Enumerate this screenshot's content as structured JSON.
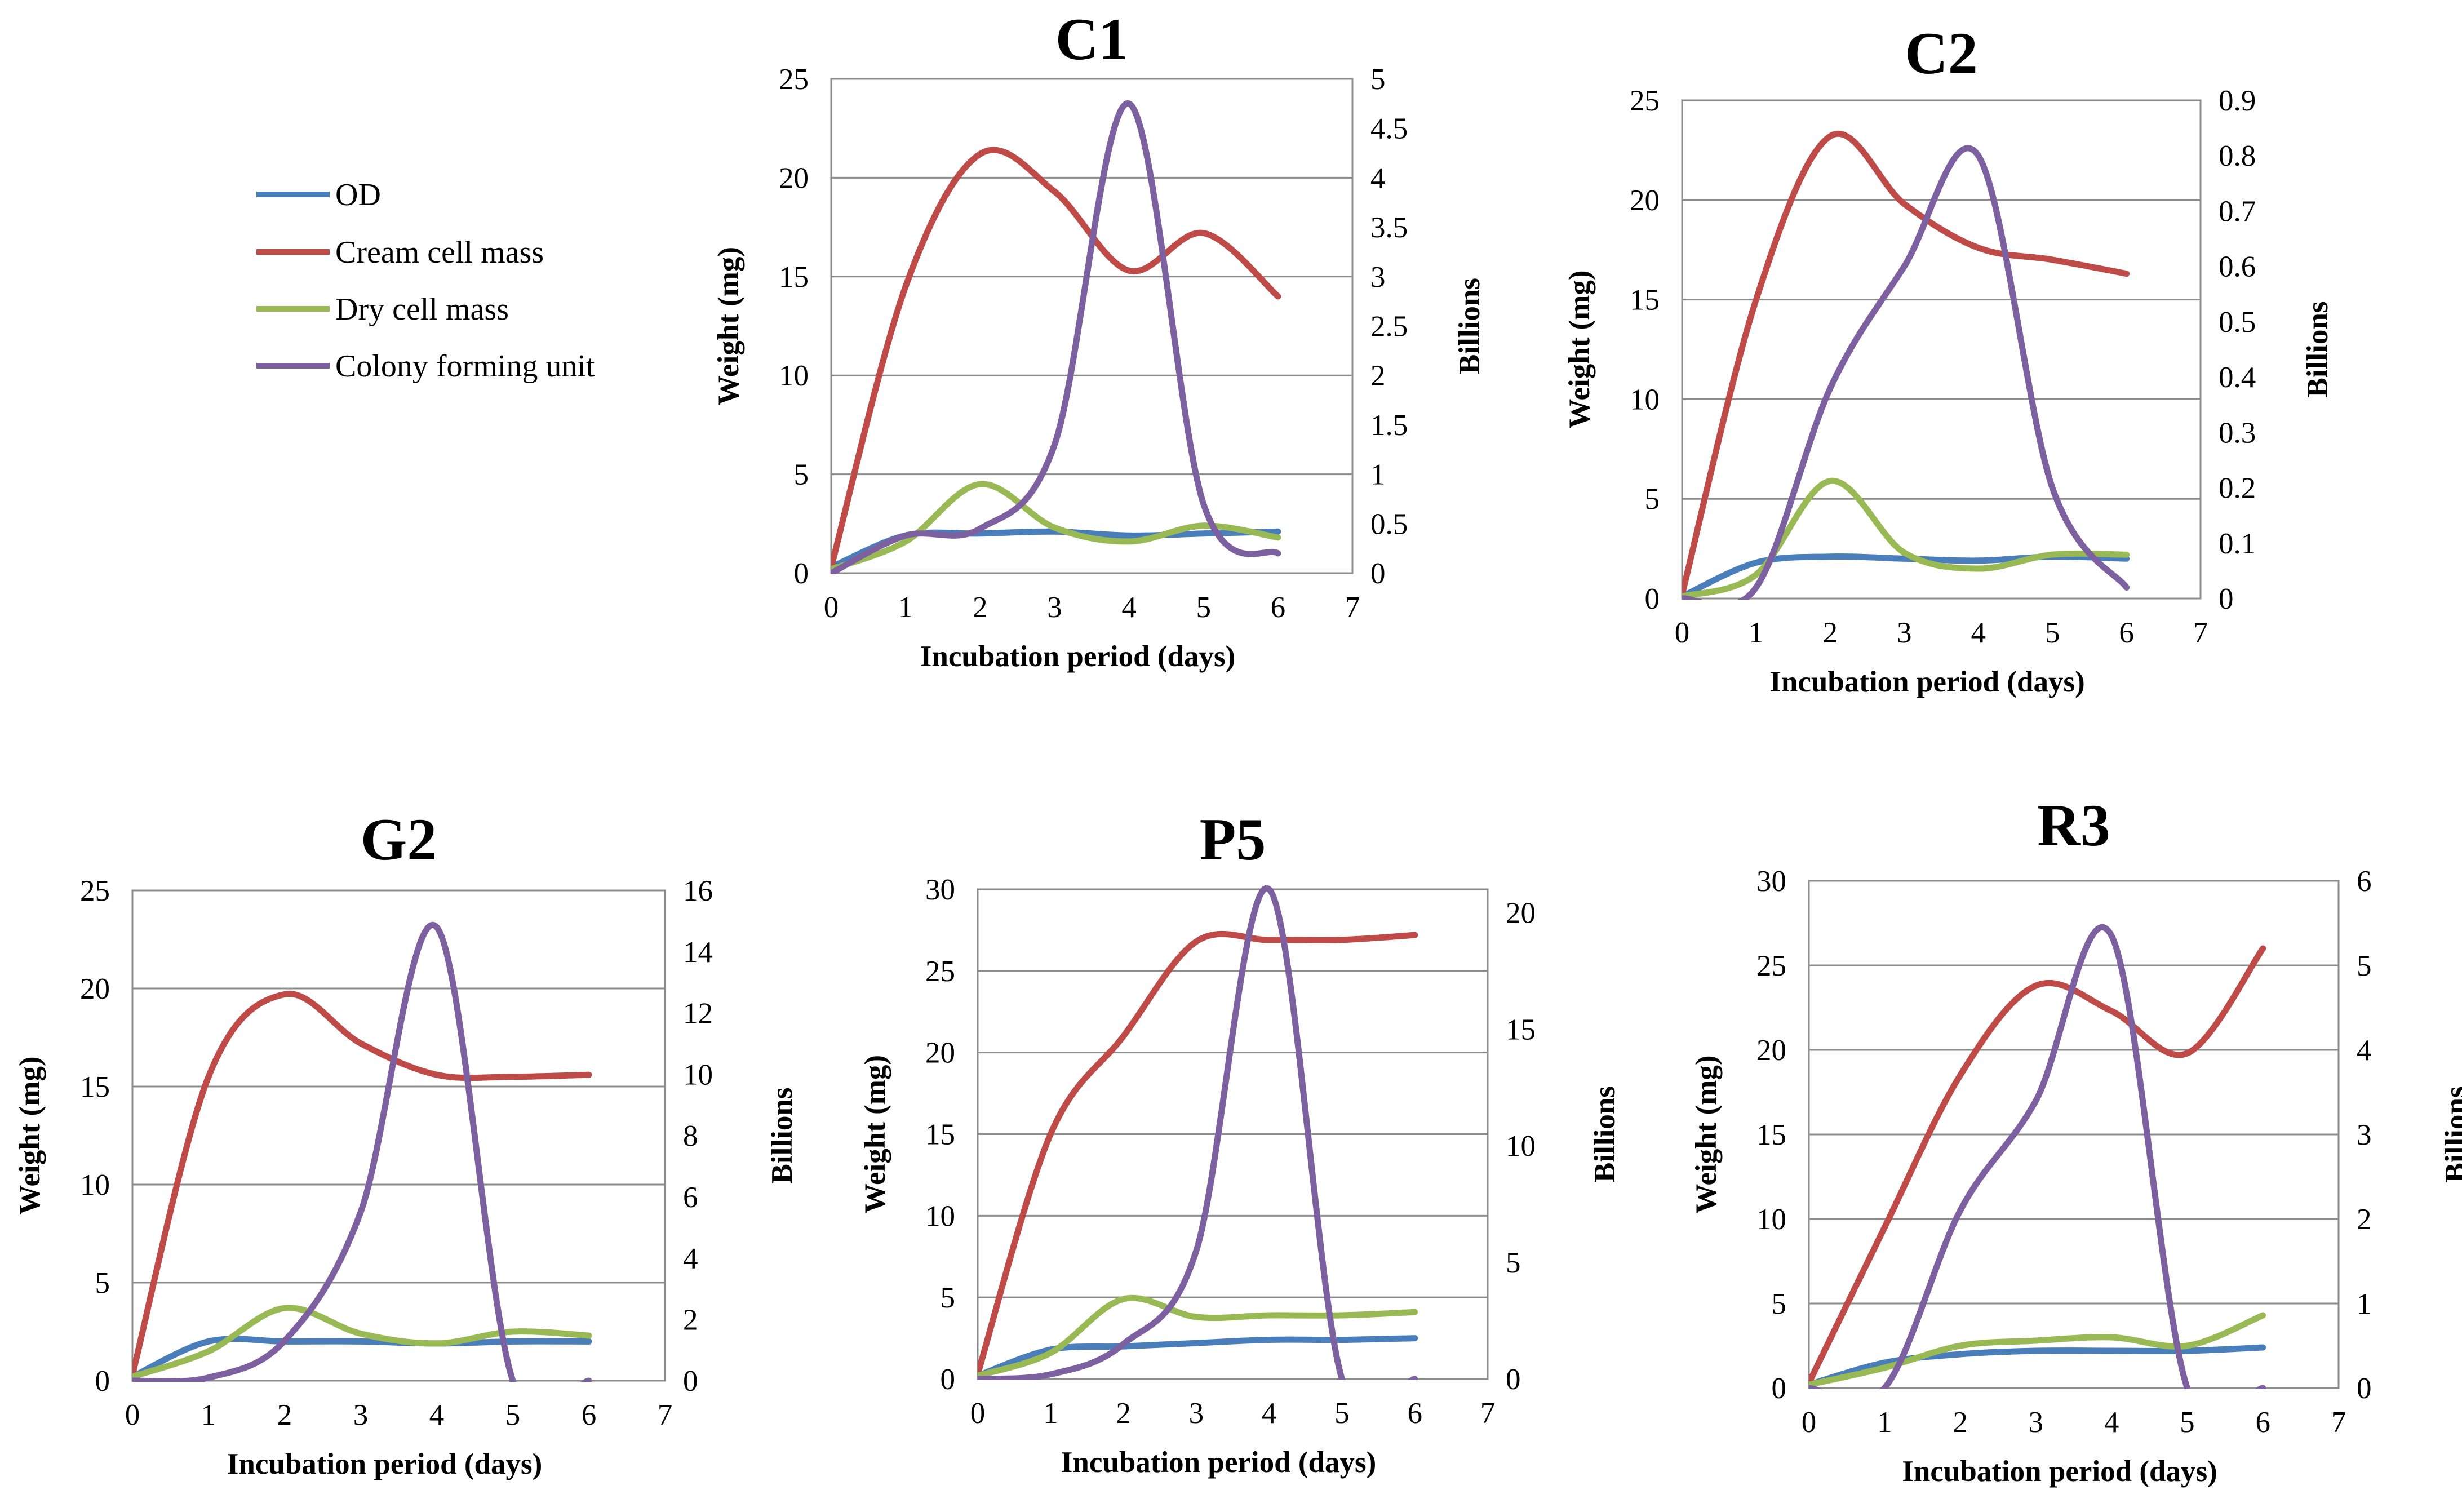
{
  "legend": {
    "items": [
      {
        "key": "od",
        "label": "OD",
        "color": "#4a7ebb"
      },
      {
        "key": "cream",
        "label": "Cream cell mass",
        "color": "#be4b48"
      },
      {
        "key": "dry",
        "label": "Dry cell mass",
        "color": "#98b954"
      },
      {
        "key": "cfu",
        "label": "Colony forming unit",
        "color": "#7d60a0"
      }
    ]
  },
  "chart_data": [
    {
      "id": "C1",
      "type": "line",
      "title": "C1",
      "xlabel": "Incubation period (days)",
      "ylabel": "Weight (mg)",
      "y2label": "Billions",
      "x": [
        0,
        1,
        2,
        3,
        4,
        5,
        6
      ],
      "xlim": [
        0,
        7
      ],
      "xticks": [
        "0",
        "1",
        "2",
        "3",
        "4",
        "5",
        "6",
        "7"
      ],
      "ylim": [
        0,
        25
      ],
      "yticks": [
        "0",
        "5",
        "10",
        "15",
        "20",
        "25"
      ],
      "y2lim": [
        0,
        5
      ],
      "y2ticks": [
        "0",
        "0.5",
        "1",
        "1.5",
        "2",
        "2.5",
        "3",
        "3.5",
        "4",
        "4.5",
        "5"
      ],
      "grid": true,
      "series": [
        {
          "name": "OD",
          "axis": "left",
          "values": [
            0.3,
            1.9,
            2.0,
            2.1,
            1.9,
            2.0,
            2.1
          ]
        },
        {
          "name": "Cream cell mass",
          "axis": "left",
          "values": [
            0.3,
            14.5,
            21.2,
            19.3,
            15.3,
            17.2,
            14.0
          ]
        },
        {
          "name": "Dry cell mass",
          "axis": "left",
          "values": [
            0.2,
            1.6,
            4.5,
            2.3,
            1.6,
            2.4,
            1.8
          ]
        },
        {
          "name": "Colony forming unit",
          "axis": "right",
          "values": [
            0.0,
            0.38,
            0.45,
            1.3,
            4.75,
            0.7,
            0.2
          ]
        }
      ]
    },
    {
      "id": "C2",
      "type": "line",
      "title": "C2",
      "xlabel": "Incubation period (days)",
      "ylabel": "Weight (mg)",
      "y2label": "Billions",
      "x": [
        0,
        1,
        2,
        3,
        4,
        5,
        6
      ],
      "xlim": [
        0,
        7
      ],
      "xticks": [
        "0",
        "1",
        "2",
        "3",
        "4",
        "5",
        "6",
        "7"
      ],
      "ylim": [
        0,
        25
      ],
      "yticks": [
        "0",
        "5",
        "10",
        "15",
        "20",
        "25"
      ],
      "y2lim": [
        0,
        0.9
      ],
      "y2ticks": [
        "0",
        "0.1",
        "0.2",
        "0.3",
        "0.4",
        "0.5",
        "0.6",
        "0.7",
        "0.8",
        "0.9"
      ],
      "grid": true,
      "series": [
        {
          "name": "OD",
          "axis": "left",
          "values": [
            0.1,
            1.8,
            2.1,
            2.0,
            1.9,
            2.1,
            2.0
          ]
        },
        {
          "name": "Cream cell mass",
          "axis": "left",
          "values": [
            0.2,
            15.0,
            23.2,
            19.8,
            17.6,
            17.0,
            16.3
          ]
        },
        {
          "name": "Dry cell mass",
          "axis": "left",
          "values": [
            0.1,
            1.2,
            5.9,
            2.3,
            1.5,
            2.2,
            2.2
          ]
        },
        {
          "name": "Colony forming unit",
          "axis": "right",
          "values": [
            0.0,
            0.02,
            0.38,
            0.6,
            0.8,
            0.2,
            0.02
          ]
        }
      ]
    },
    {
      "id": "G2",
      "type": "line",
      "title": "G2",
      "xlabel": "Incubation period (days)",
      "ylabel": "Weight (mg)",
      "y2label": "Billions",
      "x": [
        0,
        1,
        2,
        3,
        4,
        5,
        6
      ],
      "xlim": [
        0,
        7
      ],
      "xticks": [
        "0",
        "1",
        "2",
        "3",
        "4",
        "5",
        "6",
        "7"
      ],
      "ylim": [
        0,
        25
      ],
      "yticks": [
        "0",
        "5",
        "10",
        "15",
        "20",
        "25"
      ],
      "y2lim": [
        0,
        16
      ],
      "y2ticks": [
        "0",
        "2",
        "4",
        "6",
        "8",
        "10",
        "12",
        "14",
        "16"
      ],
      "grid": true,
      "series": [
        {
          "name": "OD",
          "axis": "left",
          "values": [
            0.2,
            2.0,
            2.0,
            2.0,
            1.9,
            2.0,
            2.0
          ]
        },
        {
          "name": "Cream cell mass",
          "axis": "left",
          "values": [
            0.3,
            15.5,
            19.7,
            17.2,
            15.6,
            15.5,
            15.6
          ]
        },
        {
          "name": "Dry cell mass",
          "axis": "left",
          "values": [
            0.2,
            1.5,
            3.7,
            2.4,
            1.9,
            2.5,
            2.3
          ]
        },
        {
          "name": "Colony forming unit",
          "axis": "right",
          "values": [
            0.0,
            0.1,
            1.3,
            5.5,
            14.8,
            0.0,
            0.0
          ]
        }
      ]
    },
    {
      "id": "P5",
      "type": "line",
      "title": "P5",
      "xlabel": "Incubation period (days)",
      "ylabel": "Weight (mg)",
      "y2label": "Billions",
      "x": [
        0,
        1,
        2,
        3,
        4,
        5,
        6
      ],
      "xlim": [
        0,
        7
      ],
      "xticks": [
        "0",
        "1",
        "2",
        "3",
        "4",
        "5",
        "6",
        "7"
      ],
      "ylim": [
        0,
        30
      ],
      "yticks": [
        "0",
        "5",
        "10",
        "15",
        "20",
        "25",
        "30"
      ],
      "y2lim": [
        0,
        21
      ],
      "y2ticks": [
        "0",
        "5",
        "10",
        "15",
        "20"
      ],
      "grid": true,
      "series": [
        {
          "name": "OD",
          "axis": "left",
          "values": [
            0.2,
            1.8,
            2.0,
            2.2,
            2.4,
            2.4,
            2.5
          ]
        },
        {
          "name": "Cream cell mass",
          "axis": "left",
          "values": [
            0.3,
            15.0,
            21.0,
            26.8,
            26.9,
            26.9,
            27.2
          ]
        },
        {
          "name": "Dry cell mass",
          "axis": "left",
          "values": [
            0.2,
            1.6,
            4.9,
            3.8,
            3.9,
            3.9,
            4.1
          ]
        },
        {
          "name": "Colony forming unit",
          "axis": "right",
          "values": [
            0.0,
            0.2,
            1.5,
            5.5,
            21.0,
            0.0,
            0.0
          ]
        }
      ]
    },
    {
      "id": "R3",
      "type": "line",
      "title": "R3",
      "xlabel": "Incubation period (days)",
      "ylabel": "Weight (mg)",
      "y2label": "Billions",
      "x": [
        0,
        1,
        2,
        3,
        4,
        5,
        6
      ],
      "xlim": [
        0,
        7
      ],
      "xticks": [
        "0",
        "1",
        "2",
        "3",
        "4",
        "5",
        "6",
        "7"
      ],
      "ylim": [
        0,
        30
      ],
      "yticks": [
        "0",
        "5",
        "10",
        "15",
        "20",
        "25",
        "30"
      ],
      "y2lim": [
        0,
        6
      ],
      "y2ticks": [
        "0",
        "1",
        "2",
        "3",
        "4",
        "5",
        "6"
      ],
      "grid": true,
      "series": [
        {
          "name": "OD",
          "axis": "left",
          "values": [
            0.2,
            1.5,
            2.0,
            2.2,
            2.2,
            2.2,
            2.4
          ]
        },
        {
          "name": "Cream cell mass",
          "axis": "left",
          "values": [
            0.3,
            9.5,
            18.5,
            23.8,
            22.3,
            19.8,
            26.0
          ]
        },
        {
          "name": "Dry cell mass",
          "axis": "left",
          "values": [
            0.2,
            1.2,
            2.5,
            2.8,
            3.0,
            2.5,
            4.3
          ]
        },
        {
          "name": "Colony forming unit",
          "axis": "right",
          "values": [
            0.0,
            0.0,
            2.1,
            3.4,
            5.35,
            0.0,
            0.0
          ]
        }
      ]
    }
  ]
}
